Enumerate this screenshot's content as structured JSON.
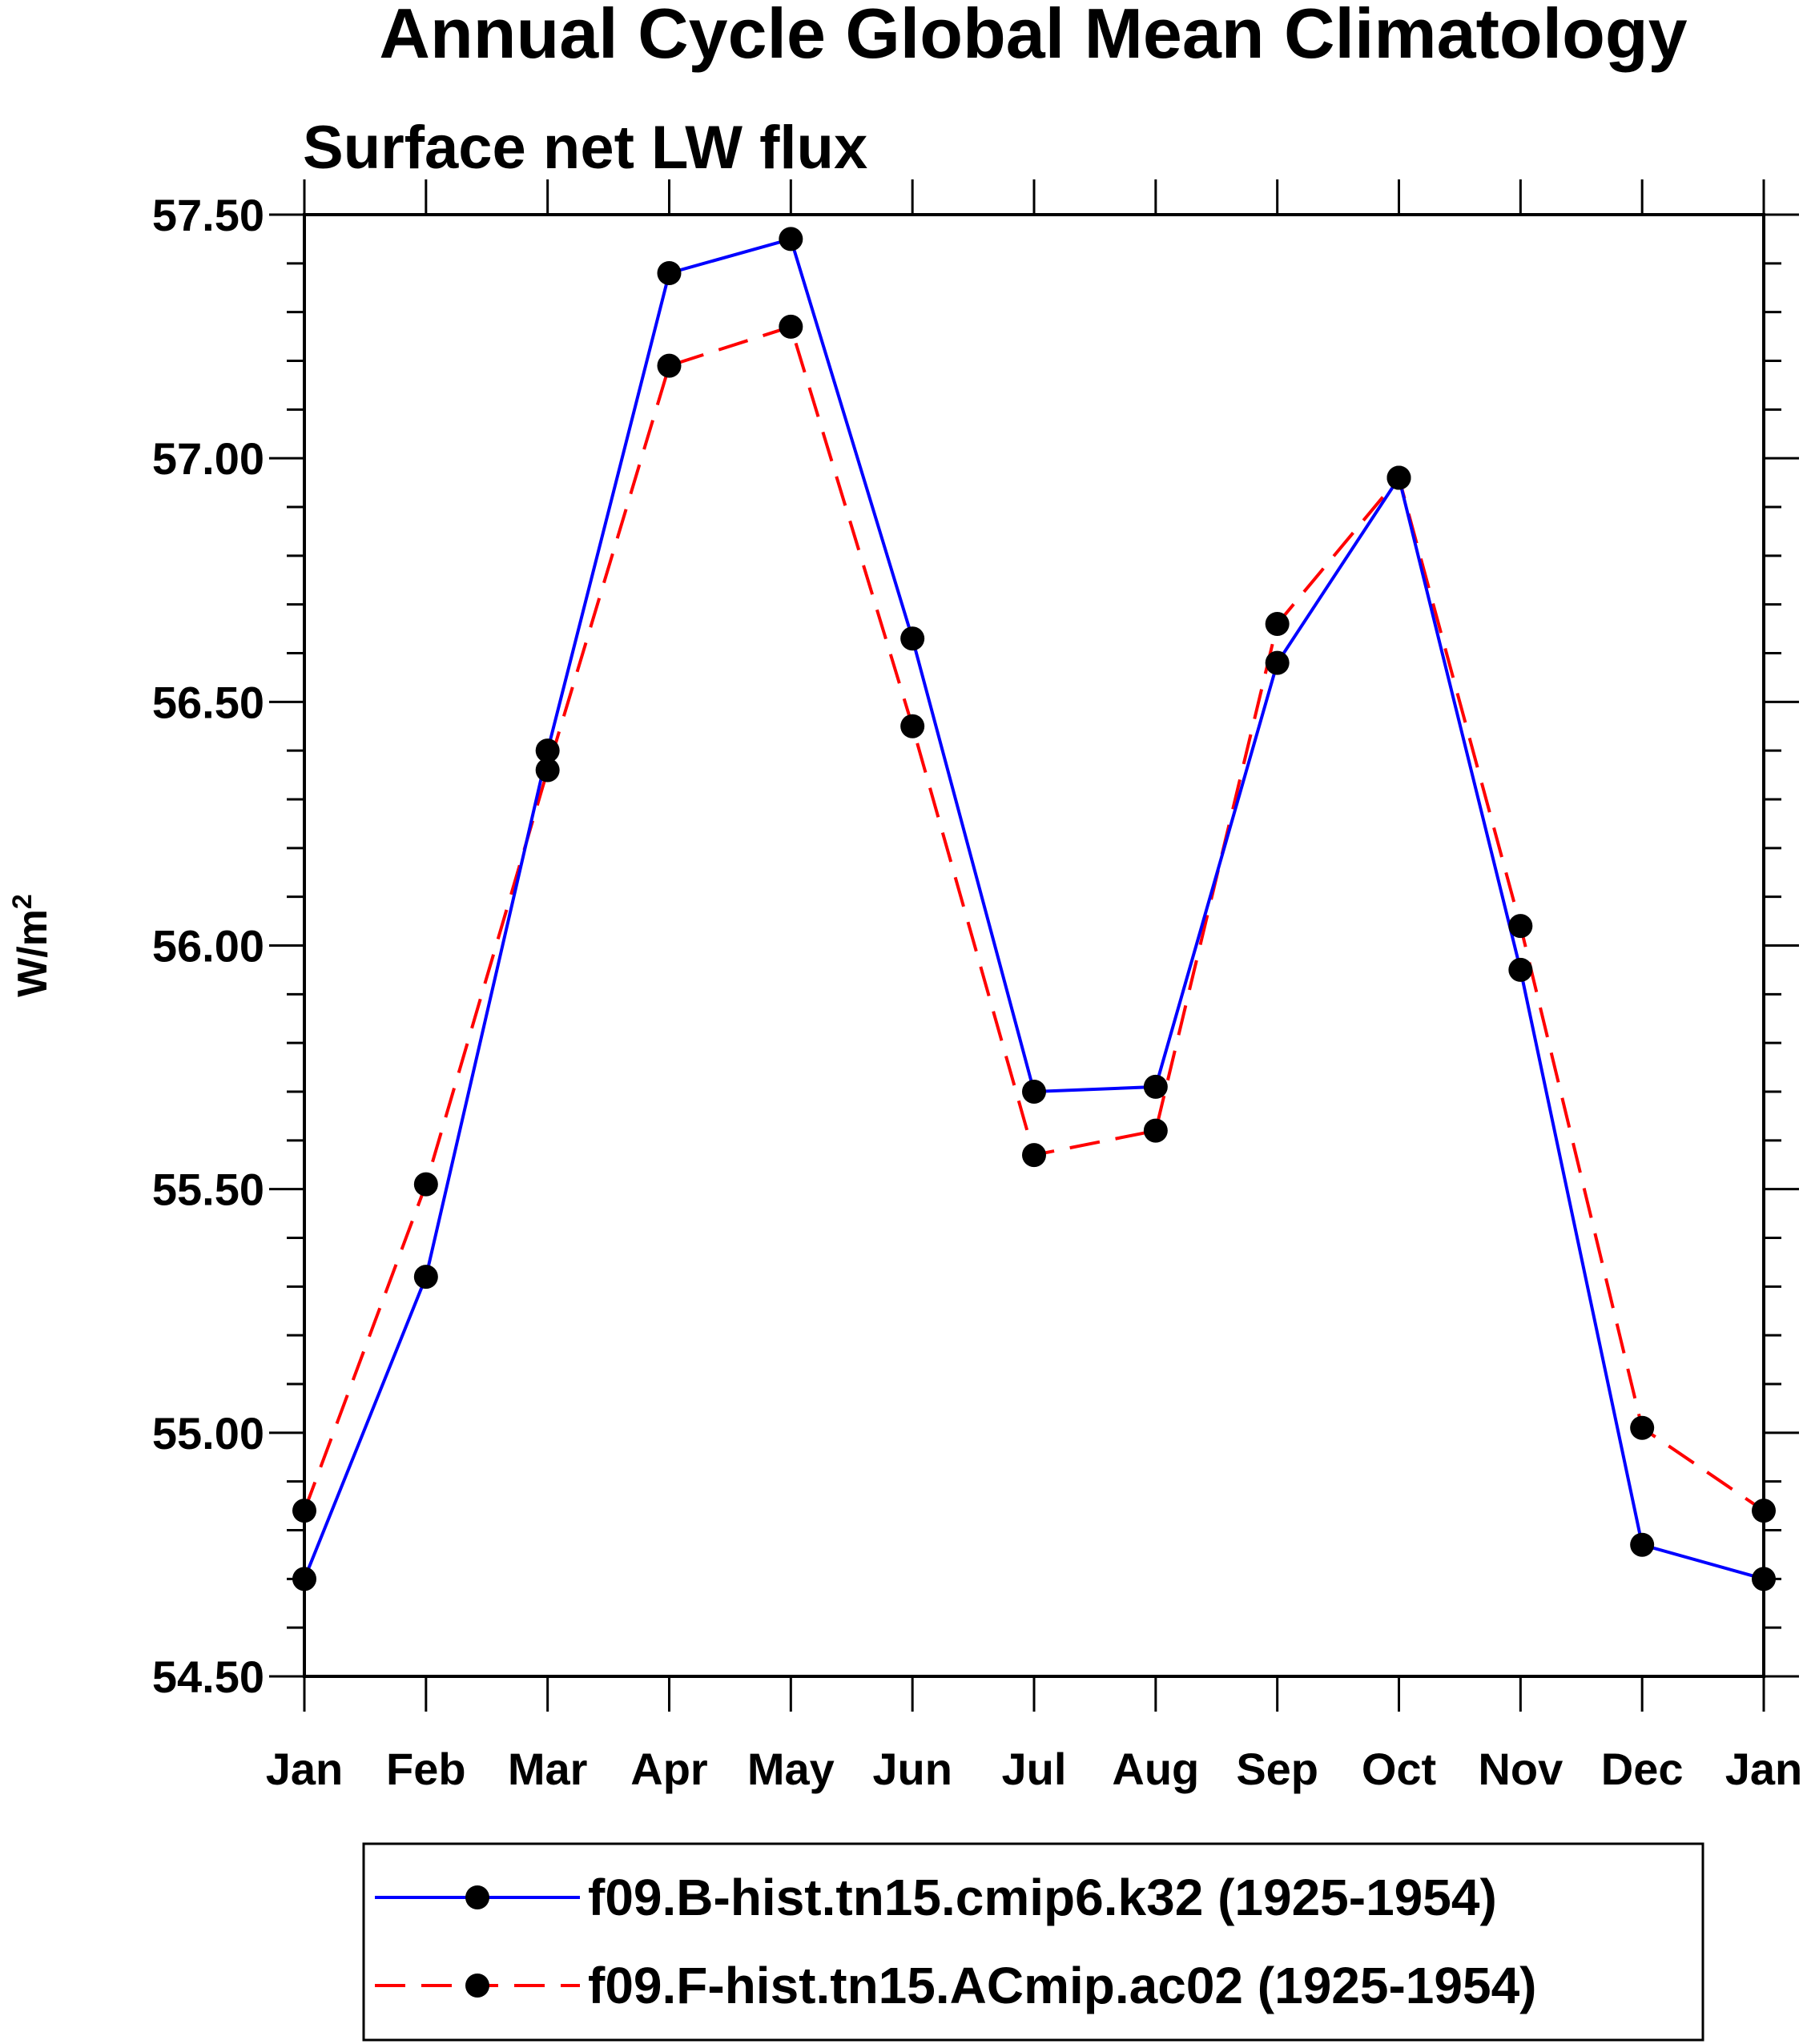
{
  "chart_data": {
    "type": "line",
    "title": "Annual Cycle Global Mean Climatology",
    "subtitle": "Surface net LW flux",
    "ylabel": "W/m",
    "ylabel_sup": "2",
    "categories": [
      "Jan",
      "Feb",
      "Mar",
      "Apr",
      "May",
      "Jun",
      "Jul",
      "Aug",
      "Sep",
      "Oct",
      "Nov",
      "Dec",
      "Jan"
    ],
    "ylim": [
      54.5,
      57.5
    ],
    "yticks": [
      "54.50",
      "55.00",
      "55.50",
      "56.00",
      "56.50",
      "57.00",
      "57.50"
    ],
    "grid": false,
    "legend_position": "bottom",
    "series": [
      {
        "name": "f09.B-hist.tn15.cmip6.k32 (1925-1954)",
        "color": "#0000ff",
        "dash": "solid",
        "values": [
          54.7,
          55.32,
          56.4,
          57.38,
          57.45,
          56.63,
          55.7,
          55.71,
          56.58,
          56.96,
          55.95,
          54.77,
          54.7
        ]
      },
      {
        "name": "f09.F-hist.tn15.ACmip.ac02 (1925-1954)",
        "color": "#ff0000",
        "dash": "dashed",
        "values": [
          54.84,
          55.51,
          56.36,
          57.19,
          57.27,
          56.45,
          55.57,
          55.62,
          56.66,
          56.96,
          56.04,
          55.01,
          54.84
        ]
      }
    ]
  }
}
